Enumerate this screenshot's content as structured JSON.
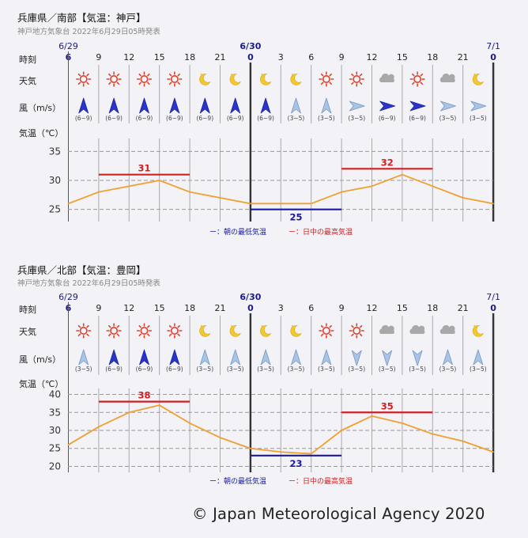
{
  "labels": {
    "time": "時刻",
    "weather": "天気",
    "wind": "風（m/s）",
    "temp": "気温（℃）"
  },
  "copyright": "© Japan Meteorological Agency 2020",
  "colors": {
    "line": "#f0a030",
    "max_bar": "#d02020",
    "min_bar": "#1a1aa0",
    "date_text": "#1a1a8a",
    "grid": "#999999"
  },
  "panels": [
    {
      "title": "兵庫県／南部【気温：神戸】",
      "subtitle": "神戸地方気象台 2022年6月29日05時発表",
      "dates": [
        {
          "label": "6/29",
          "index": 0
        },
        {
          "label": "6/30",
          "index": 6
        },
        {
          "label": "7/1",
          "index": 14
        }
      ],
      "weather": [
        "sun",
        "sun",
        "sun",
        "sun",
        "moon",
        "moon",
        "moon",
        "moon",
        "sun",
        "sun",
        "cloud",
        "sun",
        "cloud",
        "moon"
      ],
      "wind": [
        {
          "dir": "N",
          "range": "(6~9)",
          "strong": true
        },
        {
          "dir": "N",
          "range": "(6~9)",
          "strong": true
        },
        {
          "dir": "N",
          "range": "(6~9)",
          "strong": true
        },
        {
          "dir": "N",
          "range": "(6~9)",
          "strong": true
        },
        {
          "dir": "N",
          "range": "(6~9)",
          "strong": true
        },
        {
          "dir": "N",
          "range": "(6~9)",
          "strong": true
        },
        {
          "dir": "N",
          "range": "(6~9)",
          "strong": true
        },
        {
          "dir": "N",
          "range": "(3~5)",
          "strong": false
        },
        {
          "dir": "N",
          "range": "(3~5)",
          "strong": false
        },
        {
          "dir": "E",
          "range": "(3~5)",
          "strong": false
        },
        {
          "dir": "E",
          "range": "(6~9)",
          "strong": true
        },
        {
          "dir": "E",
          "range": "(6~9)",
          "strong": true
        },
        {
          "dir": "E",
          "range": "(3~5)",
          "strong": false
        },
        {
          "dir": "E",
          "range": "(3~5)",
          "strong": false
        }
      ],
      "legend_min": "ー：朝の最低気温",
      "legend_max": "ー：日中の最高気温",
      "chart_data": {
        "type": "line",
        "title": "兵庫県／南部【気温：神戸】",
        "xlabel": "時刻",
        "ylabel": "気温（℃）",
        "x": [
          "6",
          "9",
          "12",
          "15",
          "18",
          "21",
          "0",
          "3",
          "6",
          "9",
          "12",
          "15",
          "18",
          "21",
          "0"
        ],
        "series": [
          {
            "name": "気温",
            "values": [
              26,
              28,
              29,
              30,
              28,
              27,
              26,
              26,
              26,
              28,
              29,
              31,
              29,
              27,
              26
            ]
          }
        ],
        "ylim": [
          24,
          36
        ],
        "yticks": [
          25,
          30,
          35
        ],
        "max_temps": [
          {
            "value": 31,
            "from": 1,
            "to": 4
          },
          {
            "value": 32,
            "from": 9,
            "to": 12
          }
        ],
        "min_temps": [
          {
            "value": 25,
            "from": 6,
            "to": 9
          }
        ]
      }
    },
    {
      "title": "兵庫県／北部【気温：豊岡】",
      "subtitle": "神戸地方気象台 2022年6月29日05時発表",
      "dates": [
        {
          "label": "6/29",
          "index": 0
        },
        {
          "label": "6/30",
          "index": 6
        },
        {
          "label": "7/1",
          "index": 14
        }
      ],
      "weather": [
        "sun",
        "sun",
        "sun",
        "sun",
        "moon",
        "moon",
        "moon",
        "moon",
        "sun",
        "sun",
        "cloud",
        "cloud",
        "cloud",
        "moon"
      ],
      "wind": [
        {
          "dir": "N",
          "range": "(3~5)",
          "strong": false
        },
        {
          "dir": "N",
          "range": "(6~9)",
          "strong": true
        },
        {
          "dir": "N",
          "range": "(6~9)",
          "strong": true
        },
        {
          "dir": "N",
          "range": "(6~9)",
          "strong": true
        },
        {
          "dir": "N",
          "range": "(3~5)",
          "strong": false
        },
        {
          "dir": "N",
          "range": "(3~5)",
          "strong": false
        },
        {
          "dir": "N",
          "range": "(3~5)",
          "strong": false
        },
        {
          "dir": "N",
          "range": "(3~5)",
          "strong": false
        },
        {
          "dir": "N",
          "range": "(3~5)",
          "strong": false
        },
        {
          "dir": "S",
          "range": "(3~5)",
          "strong": false
        },
        {
          "dir": "S",
          "range": "(3~5)",
          "strong": false
        },
        {
          "dir": "S",
          "range": "(3~5)",
          "strong": false
        },
        {
          "dir": "N",
          "range": "(3~5)",
          "strong": false
        },
        {
          "dir": "N",
          "range": "(3~5)",
          "strong": false
        }
      ],
      "legend_min": "ー：朝の最低気温",
      "legend_max": "ー：日中の最高気温",
      "chart_data": {
        "type": "line",
        "title": "兵庫県／北部【気温：豊岡】",
        "xlabel": "時刻",
        "ylabel": "気温（℃）",
        "x": [
          "6",
          "9",
          "12",
          "15",
          "18",
          "21",
          "0",
          "3",
          "6",
          "9",
          "12",
          "15",
          "18",
          "21",
          "0"
        ],
        "series": [
          {
            "name": "気温",
            "values": [
              26,
              31,
              35,
              37,
              32,
              28,
              25,
              24,
              23.5,
              30,
              34,
              32,
              29,
              27,
              24
            ]
          }
        ],
        "ylim": [
          19,
          41
        ],
        "yticks": [
          20,
          25,
          30,
          35,
          40
        ],
        "max_temps": [
          {
            "value": 38,
            "from": 1,
            "to": 4
          },
          {
            "value": 35,
            "from": 9,
            "to": 12
          }
        ],
        "min_temps": [
          {
            "value": 23,
            "from": 6,
            "to": 9
          }
        ]
      }
    }
  ]
}
